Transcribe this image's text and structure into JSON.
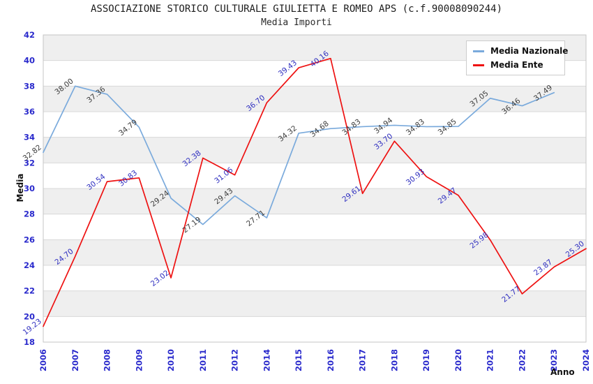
{
  "header": {
    "title": "ASSOCIAZIONE STORICO CULTURALE GIULIETTA E ROMEO APS (c.f.90008090244)",
    "subtitle": "Media Importi"
  },
  "legend": {
    "position": "top-right",
    "items": [
      {
        "label": "Media Nazionale",
        "marker": "line-dash-icon",
        "color": "#7aaadc"
      },
      {
        "label": "Media Ente",
        "marker": "line-dash-icon",
        "color": "#ee1111"
      }
    ]
  },
  "chart_data": {
    "type": "line",
    "title": "ASSOCIAZIONE STORICO CULTURALE GIULIETTA E ROMEO APS (c.f.90008090244)",
    "subtitle": "Media Importi",
    "xlabel": "Anno",
    "ylabel": "Media",
    "ylim": [
      18,
      42
    ],
    "y_tick_step": 2,
    "grid": "horizontal-gridlines-with-alternating-bands",
    "legend_position": "top-right",
    "categories": [
      "2006",
      "2007",
      "2008",
      "2009",
      "2010",
      "2011",
      "2012",
      "2014",
      "2015",
      "2016",
      "2017",
      "2018",
      "2019",
      "2020",
      "2021",
      "2022",
      "2023",
      "2024"
    ],
    "series": [
      {
        "name": "Media Nazionale",
        "color": "#7aaadc",
        "label_color": "#3d3d3d",
        "values": [
          32.82,
          38.0,
          37.36,
          34.79,
          29.24,
          27.19,
          29.43,
          27.71,
          34.32,
          34.68,
          34.83,
          34.94,
          34.83,
          34.85,
          37.05,
          36.46,
          37.49,
          null
        ]
      },
      {
        "name": "Media Ente",
        "color": "#ee1111",
        "label_color": "#2f2fc0",
        "values": [
          19.23,
          24.7,
          30.54,
          30.83,
          23.02,
          32.38,
          31.06,
          36.7,
          39.43,
          40.16,
          29.61,
          33.7,
          30.93,
          29.47,
          25.98,
          21.77,
          23.87,
          25.3
        ]
      }
    ],
    "colors": {
      "axis_tick_label": "#2a2acc",
      "band_fill": "#efefef",
      "gridline": "#d8d8d8",
      "plot_border": "#c6c6c6",
      "background": "#ffffff"
    }
  }
}
